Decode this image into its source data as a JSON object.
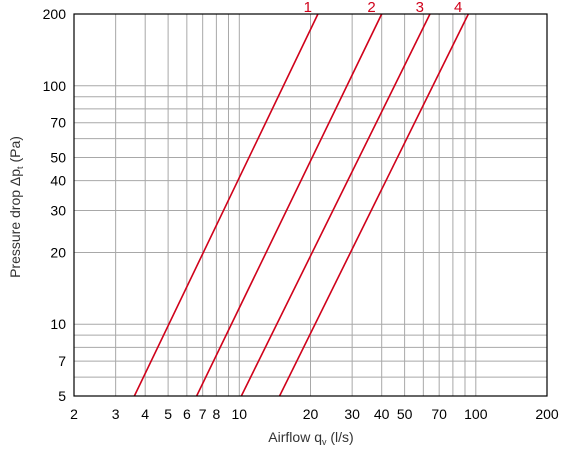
{
  "chart_data": {
    "type": "line",
    "xscale": "log",
    "yscale": "log",
    "xlim": [
      2,
      200
    ],
    "ylim": [
      5,
      200
    ],
    "grid": true,
    "xlabel": {
      "text": "Airflow q",
      "sub": "v",
      "unit": " (l/s)"
    },
    "ylabel": {
      "text": "Pressure drop Δp",
      "sub": "t",
      "unit": " (Pa)"
    },
    "x_ticks": [
      {
        "value": 2,
        "label": "2"
      },
      {
        "value": 3,
        "label": "3"
      },
      {
        "value": 4,
        "label": "4"
      },
      {
        "value": 5,
        "label": "5"
      },
      {
        "value": 6,
        "label": "6"
      },
      {
        "value": 7,
        "label": "7"
      },
      {
        "value": 8,
        "label": "8"
      },
      {
        "value": 10,
        "label": "10"
      },
      {
        "value": 20,
        "label": "20"
      },
      {
        "value": 30,
        "label": "30"
      },
      {
        "value": 40,
        "label": "40"
      },
      {
        "value": 50,
        "label": "50"
      },
      {
        "value": 70,
        "label": "70"
      },
      {
        "value": 100,
        "label": "100"
      },
      {
        "value": 200,
        "label": "200"
      }
    ],
    "y_ticks": [
      {
        "value": 5,
        "label": "5"
      },
      {
        "value": 7,
        "label": "7"
      },
      {
        "value": 10,
        "label": "10"
      },
      {
        "value": 20,
        "label": "20"
      },
      {
        "value": 30,
        "label": "30"
      },
      {
        "value": 40,
        "label": "40"
      },
      {
        "value": 50,
        "label": "50"
      },
      {
        "value": 70,
        "label": "70"
      },
      {
        "value": 100,
        "label": "100"
      },
      {
        "value": 200,
        "label": "200"
      }
    ],
    "x_grid": [
      2,
      3,
      4,
      5,
      6,
      7,
      8,
      9,
      10,
      20,
      30,
      40,
      50,
      60,
      70,
      80,
      90,
      100,
      200
    ],
    "y_grid": [
      5,
      6,
      7,
      8,
      9,
      10,
      20,
      30,
      40,
      50,
      60,
      70,
      80,
      90,
      100,
      200
    ],
    "line_color": "#d0021b",
    "series": [
      {
        "name": "1",
        "points": [
          [
            3.6,
            5
          ],
          [
            21.5,
            200
          ]
        ]
      },
      {
        "name": "2",
        "points": [
          [
            6.6,
            5
          ],
          [
            40,
            200
          ]
        ]
      },
      {
        "name": "3",
        "points": [
          [
            10.2,
            5
          ],
          [
            64,
            200
          ]
        ]
      },
      {
        "name": "4",
        "points": [
          [
            14.8,
            5
          ],
          [
            93,
            200
          ]
        ]
      }
    ]
  }
}
